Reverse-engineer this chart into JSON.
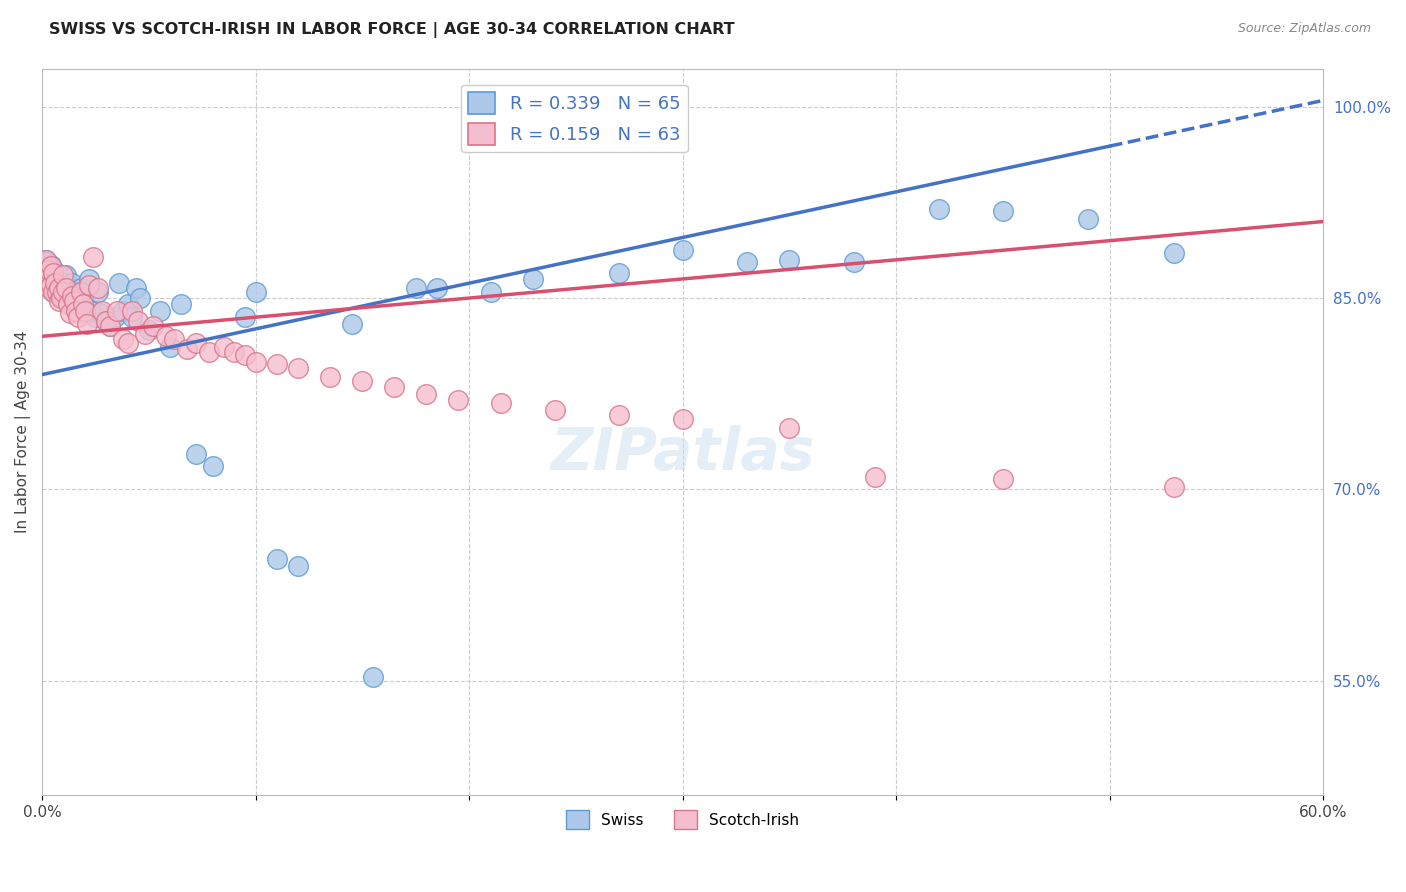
{
  "title": "SWISS VS SCOTCH-IRISH IN LABOR FORCE | AGE 30-34 CORRELATION CHART",
  "source": "Source: ZipAtlas.com",
  "ylabel": "In Labor Force | Age 30-34",
  "xlim": [
    0.0,
    0.6
  ],
  "ylim": [
    0.46,
    1.03
  ],
  "xticks": [
    0.0,
    0.1,
    0.2,
    0.3,
    0.4,
    0.5,
    0.6
  ],
  "xticklabels": [
    "0.0%",
    "",
    "",
    "",
    "",
    "",
    "60.0%"
  ],
  "yticks_right": [
    0.55,
    0.7,
    0.85,
    1.0
  ],
  "ytick_right_labels": [
    "55.0%",
    "70.0%",
    "85.0%",
    "100.0%"
  ],
  "grid_color": "#cccccc",
  "background_color": "#ffffff",
  "swiss_color": "#adc8e8",
  "swiss_edge_color": "#5b9bd5",
  "scotch_color": "#f5bece",
  "scotch_edge_color": "#d9748a",
  "trend_swiss_color": "#4472c4",
  "trend_scotch_color": "#d94f6e",
  "swiss_R": 0.339,
  "swiss_N": 65,
  "scotch_R": 0.159,
  "scotch_N": 63,
  "swiss_x": [
    0.002,
    0.002,
    0.003,
    0.003,
    0.003,
    0.004,
    0.004,
    0.005,
    0.005,
    0.006,
    0.007,
    0.007,
    0.008,
    0.009,
    0.01,
    0.01,
    0.011,
    0.011,
    0.012,
    0.013,
    0.014,
    0.015,
    0.016,
    0.017,
    0.018,
    0.019,
    0.022,
    0.023,
    0.025,
    0.026,
    0.027,
    0.03,
    0.032,
    0.034,
    0.036,
    0.038,
    0.04,
    0.042,
    0.044,
    0.046,
    0.05,
    0.055,
    0.06,
    0.065,
    0.072,
    0.08,
    0.095,
    0.1,
    0.11,
    0.12,
    0.145,
    0.155,
    0.175,
    0.185,
    0.21,
    0.23,
    0.27,
    0.3,
    0.33,
    0.35,
    0.38,
    0.42,
    0.45,
    0.49,
    0.53
  ],
  "swiss_y": [
    0.88,
    0.878,
    0.872,
    0.87,
    0.868,
    0.876,
    0.862,
    0.872,
    0.855,
    0.865,
    0.87,
    0.86,
    0.858,
    0.855,
    0.862,
    0.85,
    0.868,
    0.858,
    0.855,
    0.845,
    0.862,
    0.855,
    0.848,
    0.84,
    0.858,
    0.85,
    0.865,
    0.84,
    0.835,
    0.855,
    0.838,
    0.832,
    0.828,
    0.835,
    0.862,
    0.84,
    0.845,
    0.835,
    0.858,
    0.85,
    0.825,
    0.84,
    0.812,
    0.845,
    0.728,
    0.718,
    0.835,
    0.855,
    0.645,
    0.64,
    0.83,
    0.553,
    0.858,
    0.858,
    0.855,
    0.865,
    0.87,
    0.888,
    0.878,
    0.88,
    0.878,
    0.92,
    0.918,
    0.912,
    0.885
  ],
  "scotch_x": [
    0.002,
    0.002,
    0.003,
    0.003,
    0.004,
    0.004,
    0.005,
    0.005,
    0.006,
    0.007,
    0.008,
    0.008,
    0.009,
    0.01,
    0.01,
    0.011,
    0.012,
    0.013,
    0.014,
    0.015,
    0.016,
    0.017,
    0.018,
    0.019,
    0.02,
    0.021,
    0.022,
    0.024,
    0.026,
    0.028,
    0.03,
    0.032,
    0.035,
    0.038,
    0.04,
    0.042,
    0.045,
    0.048,
    0.052,
    0.058,
    0.062,
    0.068,
    0.072,
    0.078,
    0.085,
    0.09,
    0.095,
    0.1,
    0.11,
    0.12,
    0.135,
    0.15,
    0.165,
    0.18,
    0.195,
    0.215,
    0.24,
    0.27,
    0.3,
    0.35,
    0.39,
    0.45,
    0.53
  ],
  "scotch_y": [
    0.88,
    0.865,
    0.872,
    0.858,
    0.875,
    0.86,
    0.87,
    0.855,
    0.862,
    0.855,
    0.858,
    0.848,
    0.85,
    0.868,
    0.855,
    0.858,
    0.845,
    0.838,
    0.852,
    0.848,
    0.84,
    0.835,
    0.855,
    0.845,
    0.84,
    0.83,
    0.86,
    0.882,
    0.858,
    0.84,
    0.832,
    0.828,
    0.84,
    0.818,
    0.815,
    0.84,
    0.832,
    0.822,
    0.828,
    0.82,
    0.818,
    0.81,
    0.815,
    0.808,
    0.812,
    0.808,
    0.805,
    0.8,
    0.798,
    0.795,
    0.788,
    0.785,
    0.78,
    0.775,
    0.77,
    0.768,
    0.762,
    0.758,
    0.755,
    0.748,
    0.71,
    0.708,
    0.702
  ],
  "swiss_trend_x0": 0.0,
  "swiss_trend_y0": 0.79,
  "swiss_trend_x1": 0.6,
  "swiss_trend_y1": 1.005,
  "scotch_trend_x0": 0.0,
  "scotch_trend_y0": 0.82,
  "scotch_trend_x1": 0.6,
  "scotch_trend_y1": 0.91
}
